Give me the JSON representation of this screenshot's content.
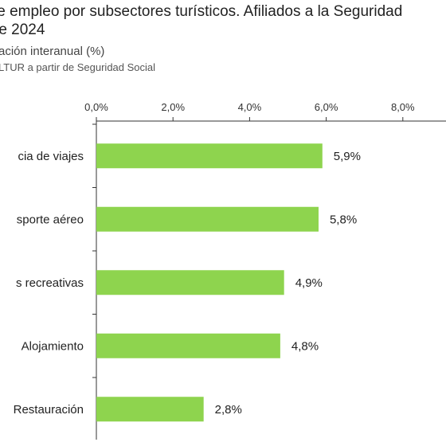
{
  "title_line1": "le empleo por subsectores turísticos. Afiliados a la Seguridad",
  "title_line2": "re 2024",
  "subtitle": "ación interanual (%)",
  "source": "LTUR a partir de Seguridad Social",
  "colors": {
    "bar": "#8ed44e",
    "axis": "#333333"
  },
  "chart_data": {
    "type": "bar",
    "orientation": "horizontal",
    "categories": [
      "cia de viajes",
      "sporte aéreo",
      "s recreativas",
      "Alojamiento",
      "Restauración"
    ],
    "values": [
      5.9,
      5.8,
      4.9,
      4.8,
      2.8
    ],
    "value_labels": [
      "5,9%",
      "5,8%",
      "4,9%",
      "4,8%",
      "2,8%"
    ],
    "x_ticks": [
      0,
      2,
      4,
      6,
      8
    ],
    "x_tick_labels": [
      "0,0%",
      "2,0%",
      "4,0%",
      "6,0%",
      "8,0%"
    ],
    "xlim": [
      0,
      9
    ],
    "axis_position": "top",
    "grid": false
  }
}
